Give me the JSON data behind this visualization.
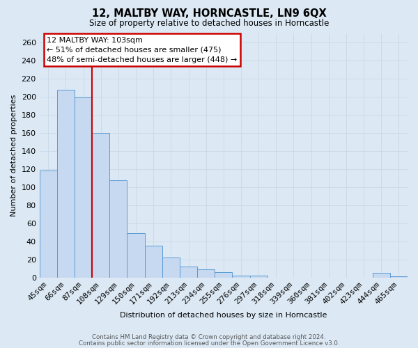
{
  "title": "12, MALTBY WAY, HORNCASTLE, LN9 6QX",
  "subtitle": "Size of property relative to detached houses in Horncastle",
  "xlabel": "Distribution of detached houses by size in Horncastle",
  "ylabel": "Number of detached properties",
  "bar_labels": [
    "45sqm",
    "66sqm",
    "87sqm",
    "108sqm",
    "129sqm",
    "150sqm",
    "171sqm",
    "192sqm",
    "213sqm",
    "234sqm",
    "255sqm",
    "276sqm",
    "297sqm",
    "318sqm",
    "339sqm",
    "360sqm",
    "381sqm",
    "402sqm",
    "423sqm",
    "444sqm",
    "465sqm"
  ],
  "bar_values": [
    118,
    207,
    199,
    160,
    107,
    49,
    35,
    22,
    12,
    9,
    6,
    2,
    2,
    0,
    0,
    0,
    0,
    0,
    0,
    5,
    1
  ],
  "bar_color": "#c6d9f0",
  "bar_edge_color": "#5b9bd5",
  "ylim": [
    0,
    270
  ],
  "yticks": [
    0,
    20,
    40,
    60,
    80,
    100,
    120,
    140,
    160,
    180,
    200,
    220,
    240,
    260
  ],
  "red_line_index": 3,
  "annotation_title": "12 MALTBY WAY: 103sqm",
  "annotation_line1": "← 51% of detached houses are smaller (475)",
  "annotation_line2": "48% of semi-detached houses are larger (448) →",
  "annotation_box_color": "#ffffff",
  "annotation_box_edge_color": "#cc0000",
  "red_line_color": "#cc0000",
  "grid_color": "#c8d8e8",
  "background_color": "#dce9f5",
  "footer1": "Contains HM Land Registry data © Crown copyright and database right 2024.",
  "footer2": "Contains public sector information licensed under the Open Government Licence v3.0."
}
